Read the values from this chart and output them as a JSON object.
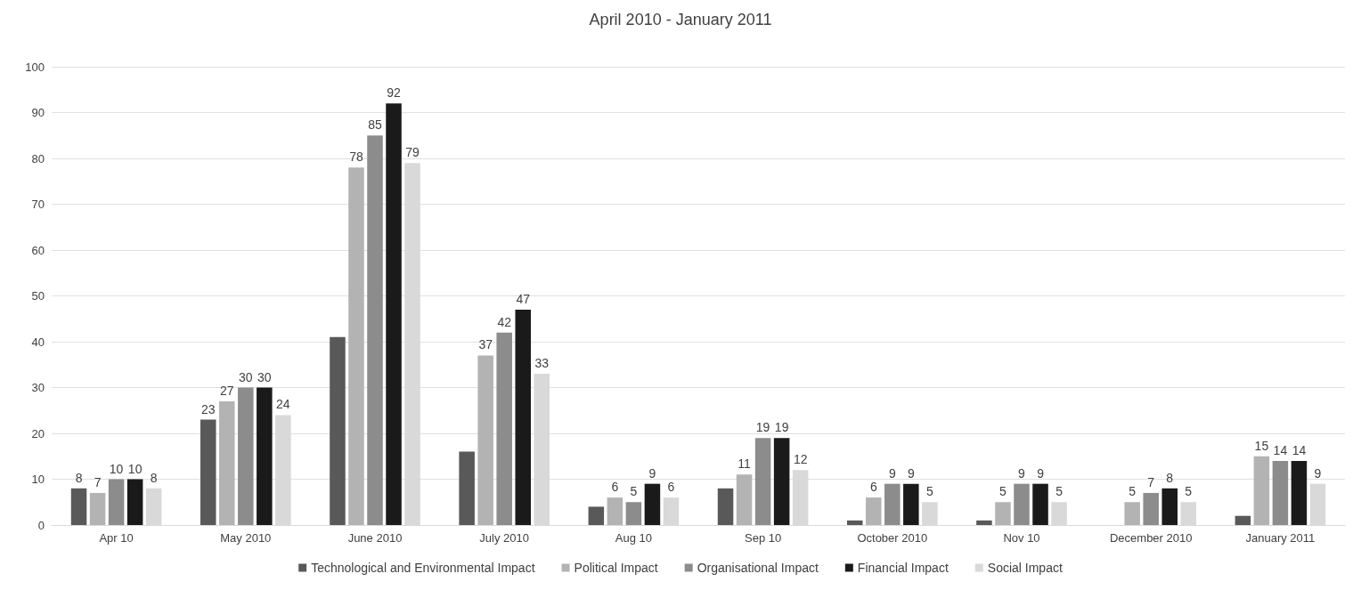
{
  "chart_data": {
    "type": "bar",
    "title": "April 2010 - January 2011",
    "categories": [
      "Apr 10",
      "May 2010",
      "June 2010",
      "July 2010",
      "Aug 10",
      "Sep 10",
      "October 2010",
      "Nov 10",
      "December 2010",
      "January 2011"
    ],
    "series": [
      {
        "name": "Technological and Environmental Impact",
        "color": "#595959",
        "values": [
          8,
          23,
          41,
          16,
          4,
          8,
          1,
          1,
          0,
          2
        ],
        "value_labels": [
          "8",
          "23",
          null,
          null,
          null,
          null,
          null,
          null,
          null,
          null
        ]
      },
      {
        "name": "Political Impact",
        "color": "#b3b3b3",
        "values": [
          7,
          27,
          78,
          37,
          6,
          11,
          6,
          5,
          5,
          15
        ],
        "value_labels": [
          "7",
          "27",
          "78",
          "37",
          "6",
          "11",
          "6",
          "5",
          "5",
          "15"
        ]
      },
      {
        "name": "Organisational Impact",
        "color": "#8c8c8c",
        "values": [
          10,
          30,
          85,
          42,
          5,
          19,
          9,
          9,
          7,
          14
        ],
        "value_labels": [
          "10",
          "30",
          "85",
          "42",
          "5",
          "19",
          "9",
          "9",
          "7",
          "14"
        ]
      },
      {
        "name": "Financial Impact",
        "color": "#1a1a1a",
        "values": [
          10,
          30,
          92,
          47,
          9,
          19,
          9,
          9,
          8,
          14
        ],
        "value_labels": [
          "10",
          "30",
          "92",
          "47",
          "9",
          "19",
          "9",
          "9",
          "8",
          "14"
        ]
      },
      {
        "name": "Social Impact",
        "color": "#d9d9d9",
        "values": [
          8,
          24,
          79,
          33,
          6,
          12,
          5,
          5,
          5,
          9
        ],
        "value_labels": [
          "8",
          "24",
          "79",
          "33",
          "6",
          "12",
          "5",
          "5",
          "5",
          "9"
        ]
      }
    ],
    "ylim": [
      0,
      100
    ],
    "yticks": [
      0,
      10,
      20,
      30,
      40,
      50,
      60,
      70,
      80,
      90,
      100
    ],
    "grid": "y",
    "legend": "bottom"
  }
}
